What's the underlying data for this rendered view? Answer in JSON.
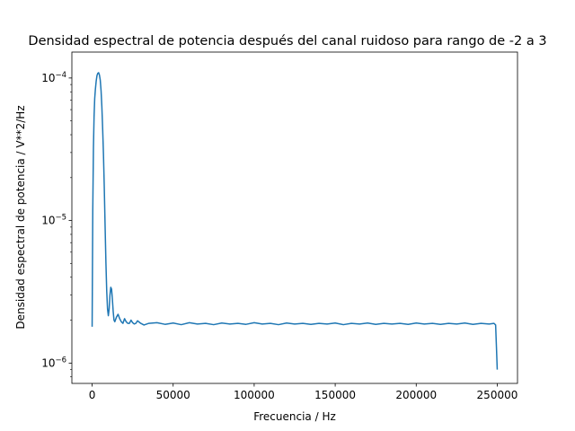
{
  "chart_data": {
    "type": "line",
    "title": "Densidad espectral de potencia después del canal ruidoso para rango de -2 a 3",
    "xlabel": "Frecuencia / Hz",
    "ylabel": "Densidad espectral de potencia / V**2/Hz",
    "xlim": [
      -12500,
      262500
    ],
    "ylim": [
      7.2e-07,
      0.000152
    ],
    "yscale": "log",
    "grid": false,
    "line_color": "#1f77b4",
    "x_ticks": [
      {
        "value": 0,
        "label": "0"
      },
      {
        "value": 50000,
        "label": "50000"
      },
      {
        "value": 100000,
        "label": "100000"
      },
      {
        "value": 150000,
        "label": "150000"
      },
      {
        "value": 200000,
        "label": "200000"
      },
      {
        "value": 250000,
        "label": "250000"
      }
    ],
    "y_ticks": [
      {
        "value": 1e-06,
        "base": "10",
        "exp": "−6"
      },
      {
        "value": 1e-05,
        "base": "10",
        "exp": "−5"
      },
      {
        "value": 0.0001,
        "base": "10",
        "exp": "−4"
      }
    ],
    "series": [
      {
        "x": [
          0,
          400,
          800,
          1200,
          1600,
          2000,
          2500,
          3000,
          3500,
          4000,
          4500,
          5000,
          5500,
          6000,
          6500,
          7000,
          7500,
          8000,
          8500,
          9000,
          9500,
          10000,
          10500,
          11000,
          11500,
          12000,
          12500,
          13000,
          13500,
          14000,
          15000,
          16000,
          17000,
          18000,
          19000,
          20000,
          21000,
          22000,
          23000,
          24000,
          25000,
          26000,
          27000,
          28000,
          30000,
          32000,
          35000,
          40000,
          45000,
          50000,
          55000,
          60000,
          65000,
          70000,
          75000,
          80000,
          85000,
          90000,
          95000,
          100000,
          105000,
          110000,
          115000,
          120000,
          125000,
          130000,
          135000,
          140000,
          145000,
          150000,
          155000,
          160000,
          165000,
          170000,
          175000,
          180000,
          185000,
          190000,
          195000,
          200000,
          205000,
          210000,
          215000,
          220000,
          225000,
          230000,
          235000,
          240000,
          245000,
          248000,
          249000,
          249500,
          250000
        ],
        "y": [
          1.8e-06,
          1.2e-05,
          3.2e-05,
          5.4e-05,
          7.2e-05,
          8.3e-05,
          9.5e-05,
          0.000104,
          0.000108,
          0.000109,
          0.000105,
          9.7e-05,
          8.2e-05,
          6.3e-05,
          4.4e-05,
          2.9e-05,
          1.7e-05,
          9.2e-06,
          5.1e-06,
          3.2e-06,
          2.4e-06,
          2.15e-06,
          2.4e-06,
          3e-06,
          3.4e-06,
          3.3e-06,
          2.8e-06,
          2.3e-06,
          2e-06,
          1.95e-06,
          2.1e-06,
          2.2e-06,
          2.05e-06,
          1.95e-06,
          1.9e-06,
          2.05e-06,
          1.95e-06,
          1.9e-06,
          1.9e-06,
          2e-06,
          1.92e-06,
          1.88e-06,
          1.9e-06,
          1.98e-06,
          1.9e-06,
          1.85e-06,
          1.9e-06,
          1.92e-06,
          1.87e-06,
          1.91e-06,
          1.86e-06,
          1.92e-06,
          1.88e-06,
          1.9e-06,
          1.86e-06,
          1.91e-06,
          1.88e-06,
          1.9e-06,
          1.87e-06,
          1.92e-06,
          1.88e-06,
          1.9e-06,
          1.86e-06,
          1.91e-06,
          1.88e-06,
          1.9e-06,
          1.87e-06,
          1.9e-06,
          1.88e-06,
          1.91e-06,
          1.86e-06,
          1.9e-06,
          1.88e-06,
          1.91e-06,
          1.87e-06,
          1.9e-06,
          1.88e-06,
          1.9e-06,
          1.87e-06,
          1.91e-06,
          1.88e-06,
          1.9e-06,
          1.87e-06,
          1.9e-06,
          1.88e-06,
          1.91e-06,
          1.87e-06,
          1.9e-06,
          1.88e-06,
          1.9e-06,
          1.85e-06,
          1.3e-06,
          9e-07
        ]
      }
    ]
  }
}
